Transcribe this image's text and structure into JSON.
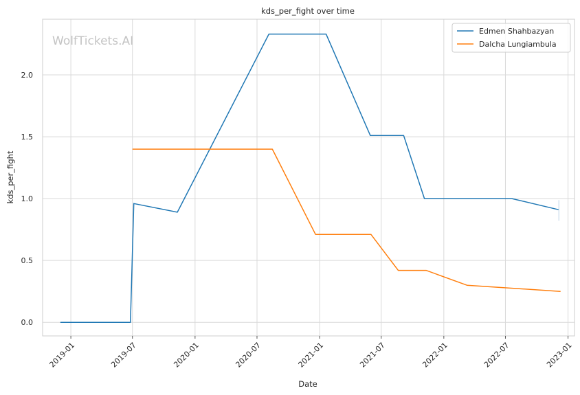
{
  "watermark": "WolfTickets.AI",
  "colors": {
    "series_1": "#1f77b4",
    "series_2": "#ff7f0e",
    "grid": "#d9d9d9",
    "axes_edge": "#cccccc"
  },
  "chart_data": {
    "type": "line",
    "title": "kds_per_fight over time",
    "xlabel": "Date",
    "ylabel": "kds_per_fight",
    "x_ticks": [
      "2019-01",
      "2019-07",
      "2020-01",
      "2020-07",
      "2021-01",
      "2021-07",
      "2022-01",
      "2022-07",
      "2023-01"
    ],
    "y_ticks": [
      "0.0",
      "0.5",
      "1.0",
      "1.5",
      "2.0"
    ],
    "xlim": [
      "2018-10-10",
      "2023-01-20"
    ],
    "ylim": [
      -0.11,
      2.45
    ],
    "grid": true,
    "legend_position": "top-right",
    "series": [
      {
        "name": "Edmen Shahbazyan",
        "color": "#1f77b4",
        "points": [
          [
            "2018-12-01",
            0.0
          ],
          [
            "2019-06-25",
            0.0
          ],
          [
            "2019-07-05",
            0.96
          ],
          [
            "2019-11-10",
            0.89
          ],
          [
            "2020-08-05",
            2.33
          ],
          [
            "2021-01-20",
            2.33
          ],
          [
            "2021-05-30",
            1.51
          ],
          [
            "2021-09-05",
            1.51
          ],
          [
            "2021-11-05",
            1.0
          ],
          [
            "2022-07-20",
            1.0
          ],
          [
            "2022-12-05",
            0.91
          ]
        ]
      },
      {
        "name": "Dalcha Lungiambula",
        "color": "#ff7f0e",
        "points": [
          [
            "2019-07-01",
            1.4
          ],
          [
            "2020-08-15",
            1.4
          ],
          [
            "2020-12-20",
            0.71
          ],
          [
            "2021-06-01",
            0.71
          ],
          [
            "2021-08-20",
            0.42
          ],
          [
            "2021-11-10",
            0.42
          ],
          [
            "2022-03-10",
            0.3
          ],
          [
            "2022-12-10",
            0.25
          ]
        ]
      }
    ]
  }
}
